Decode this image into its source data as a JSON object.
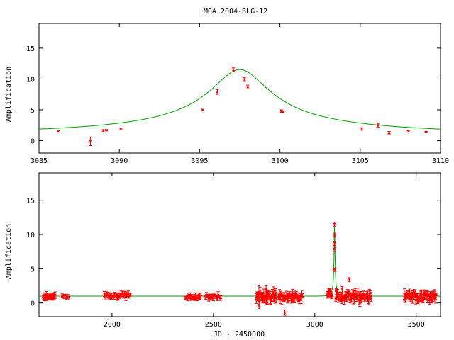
{
  "chart_data": [
    {
      "type": "scatter",
      "title": "MOA 2004-BLG-12",
      "xlabel": "",
      "ylabel": "Amplification",
      "xlim": [
        3085,
        3110
      ],
      "ylim": [
        -2,
        19
      ],
      "xticks": [
        3085,
        3090,
        3095,
        3100,
        3105,
        3110
      ],
      "yticks": [
        0,
        5,
        10,
        15
      ],
      "colors": {
        "data": "#ff0000",
        "model": "#00a000"
      },
      "series": [
        {
          "kind": "points",
          "x": [
            3086.2,
            3088.2,
            3089.0,
            3089.2,
            3090.1,
            3095.2,
            3096.1,
            3097.1,
            3097.8,
            3098.0,
            3100.1,
            3100.2,
            3105.1,
            3106.1,
            3106.8,
            3108.0,
            3109.1
          ],
          "y": [
            1.5,
            -0.1,
            1.6,
            1.7,
            1.9,
            5.0,
            7.9,
            11.5,
            9.9,
            8.7,
            4.8,
            4.7,
            1.9,
            2.5,
            1.3,
            1.5,
            1.4
          ],
          "err": [
            0.1,
            0.7,
            0.2,
            0.1,
            0.1,
            0.1,
            0.4,
            0.3,
            0.3,
            0.3,
            0.2,
            0.1,
            0.2,
            0.3,
            0.2,
            0.1,
            0.1
          ]
        },
        {
          "kind": "line",
          "model": {
            "t0": 3097.5,
            "u0": 0.087,
            "tE": 21,
            "baseline": 1.0
          }
        }
      ]
    },
    {
      "type": "scatter",
      "title": "",
      "xlabel": "JD - 2450000",
      "ylabel": "Amplification",
      "xlim": [
        1640,
        3620
      ],
      "ylim": [
        -2,
        19
      ],
      "xticks": [
        2000,
        2500,
        3000,
        3500
      ],
      "yticks": [
        0,
        5,
        10,
        15
      ],
      "colors": {
        "data": "#ff0000",
        "model": "#00a000"
      },
      "series": [
        {
          "kind": "points",
          "clusters": [
            {
              "xrange": [
                1660,
                1720
              ],
              "n": 26,
              "y": 0.9,
              "spread": 0.3,
              "err": 0.4
            },
            {
              "xrange": [
                1750,
                1790
              ],
              "n": 6,
              "y": 1.0,
              "spread": 0.2,
              "err": 0.3
            },
            {
              "xrange": [
                1960,
                2090
              ],
              "n": 34,
              "y": 1.1,
              "spread": 0.3,
              "err": 0.4
            },
            {
              "xrange": [
                2360,
                2440
              ],
              "n": 22,
              "y": 0.9,
              "spread": 0.3,
              "err": 0.4
            },
            {
              "xrange": [
                2460,
                2540
              ],
              "n": 18,
              "y": 0.9,
              "spread": 0.3,
              "err": 0.4
            },
            {
              "xrange": [
                2710,
                2810
              ],
              "n": 40,
              "y": 1.0,
              "spread": 0.6,
              "err": 0.8
            },
            {
              "xrange": [
                2820,
                2940
              ],
              "n": 40,
              "y": 0.9,
              "spread": 0.5,
              "err": 0.6
            },
            {
              "xrange": [
                3060,
                3085
              ],
              "n": 12,
              "y": 1.3,
              "spread": 0.4,
              "err": 0.5
            },
            {
              "xrange": [
                3100,
                3280
              ],
              "n": 58,
              "y": 1.0,
              "spread": 0.6,
              "err": 0.6
            },
            {
              "xrange": [
                3440,
                3600
              ],
              "n": 58,
              "y": 0.9,
              "spread": 0.5,
              "err": 0.6
            }
          ],
          "x": [
            2725,
            2760,
            2852,
            3095.2,
            3096.1,
            3097.1,
            3097.8,
            3098.0,
            3100.1,
            3105.1,
            3170,
            3222,
            3135
          ],
          "y": [
            -0.3,
            2.1,
            -1.4,
            5.0,
            7.9,
            11.5,
            9.9,
            8.7,
            4.8,
            1.9,
            3.4,
            0.0,
            2.0
          ],
          "err": [
            0.5,
            0.4,
            0.4,
            0.1,
            0.4,
            0.3,
            0.3,
            0.3,
            0.2,
            0.2,
            0.3,
            0.5,
            0.4
          ]
        },
        {
          "kind": "line",
          "model": {
            "t0": 3097.5,
            "u0": 0.087,
            "tE": 21,
            "baseline": 1.0
          }
        }
      ]
    }
  ]
}
